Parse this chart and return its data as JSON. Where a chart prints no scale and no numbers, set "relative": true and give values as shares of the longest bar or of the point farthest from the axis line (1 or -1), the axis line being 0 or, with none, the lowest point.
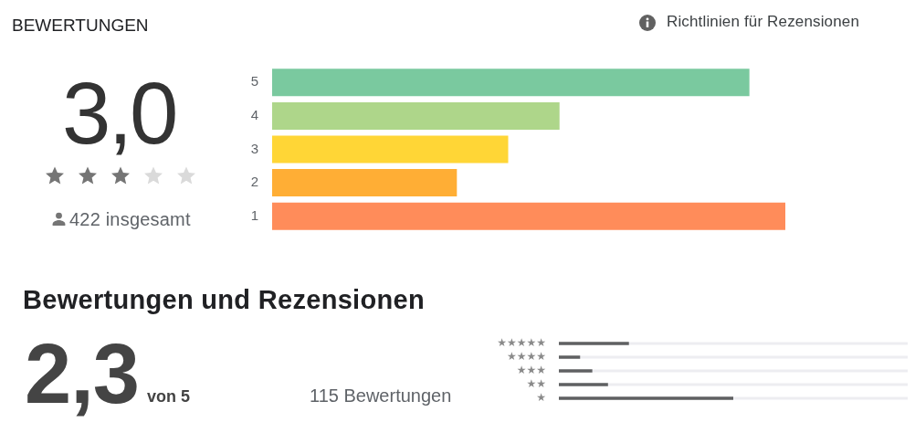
{
  "chart_data": [
    {
      "type": "bar",
      "orientation": "horizontal",
      "relative": true,
      "title": "BEWERTUNGEN",
      "categories": [
        "5",
        "4",
        "3",
        "2",
        "1"
      ],
      "values": [
        0.93,
        0.56,
        0.46,
        0.36,
        1
      ],
      "colors": [
        "#7ac99f",
        "#aed68a",
        "#ffd636",
        "#ffae35",
        "#ff8c5a"
      ],
      "annotations": [
        "3,0",
        "422 insgesamt",
        "Richtlinien für Rezensionen"
      ]
    },
    {
      "type": "bar",
      "orientation": "horizontal",
      "relative": true,
      "title": "Bewertungen und Rezensionen",
      "categories": [
        "★★★★★",
        "★★★★",
        "★★★",
        "★★",
        "★"
      ],
      "values": [
        0.4,
        0.12,
        0.19,
        0.28,
        1
      ],
      "color": "#5f6062",
      "annotations": [
        "2,3",
        "von 5",
        "115 Bewertungen"
      ]
    }
  ]
}
